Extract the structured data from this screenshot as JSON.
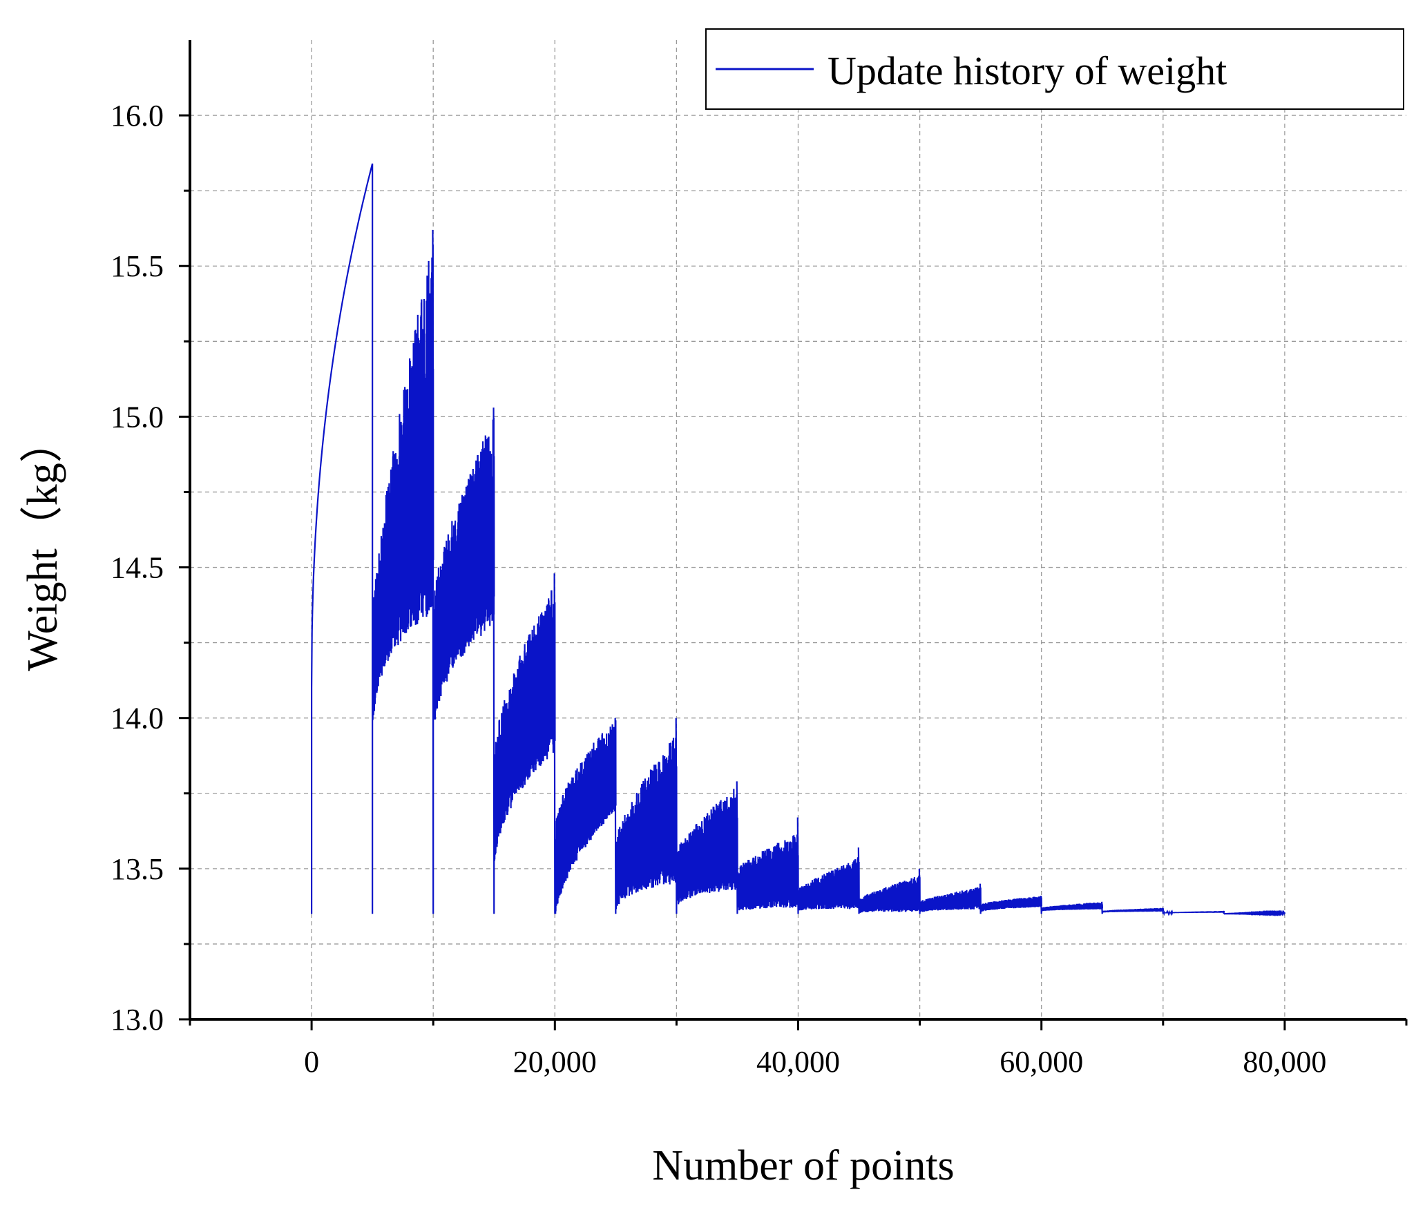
{
  "chart_data": {
    "type": "line",
    "title": "",
    "xlabel": "Number of points",
    "ylabel": "Weight（kg）",
    "xlim": [
      -10000,
      90000
    ],
    "ylim": [
      13.0,
      16.25
    ],
    "x_ticks": [
      0,
      20000,
      40000,
      60000,
      80000
    ],
    "x_tick_labels": [
      "0",
      "20,000",
      "40,000",
      "60,000",
      "80,000"
    ],
    "x_minor_ticks": [
      -10000,
      10000,
      30000,
      50000,
      70000,
      90000
    ],
    "y_ticks": [
      13.0,
      13.5,
      14.0,
      14.5,
      15.0,
      15.5,
      16.0
    ],
    "y_tick_labels": [
      "13.0",
      "13.5",
      "14.0",
      "14.5",
      "15.0",
      "15.5",
      "16.0"
    ],
    "y_minor_ticks": [
      13.25,
      13.75,
      14.25,
      14.75,
      15.25,
      15.75
    ],
    "grid": true,
    "legend_position": "top-right",
    "series": [
      {
        "name": "Update history of weight",
        "color": "#0a14c8",
        "segments": [
          {
            "start": 0,
            "end": 5000,
            "reset_low": 13.35,
            "base_start": 14.1,
            "base_end": 15.84,
            "band_start": 0.0,
            "band_end": 0.0,
            "curve": "sqrt"
          },
          {
            "start": 5000,
            "end": 10000,
            "reset_low": 13.35,
            "base_start": 14.0,
            "base_end": 14.6,
            "band_start": 0.3,
            "band_end": 1.0,
            "peak": 15.62
          },
          {
            "start": 10000,
            "end": 15000,
            "reset_low": 13.35,
            "base_start": 14.0,
            "base_end": 14.45,
            "band_start": 0.35,
            "band_end": 0.55,
            "peak": 15.03
          },
          {
            "start": 15000,
            "end": 20000,
            "reset_low": 13.35,
            "base_start": 13.55,
            "base_end": 14.0,
            "band_start": 0.3,
            "band_end": 0.45,
            "peak": 14.48
          },
          {
            "start": 20000,
            "end": 25000,
            "reset_low": 13.35,
            "base_start": 13.35,
            "base_end": 13.75,
            "band_start": 0.25,
            "band_end": 0.25,
            "peak": 14.0
          },
          {
            "start": 25000,
            "end": 30000,
            "reset_low": 13.35,
            "base_start": 13.4,
            "base_end": 13.55,
            "band_start": 0.2,
            "band_end": 0.4,
            "peak": 14.0
          },
          {
            "start": 30000,
            "end": 35000,
            "reset_low": 13.35,
            "base_start": 13.4,
            "base_end": 13.5,
            "band_start": 0.15,
            "band_end": 0.28,
            "peak": 13.79
          },
          {
            "start": 35000,
            "end": 40000,
            "reset_low": 13.35,
            "base_start": 13.38,
            "base_end": 13.42,
            "band_start": 0.12,
            "band_end": 0.2,
            "peak": 13.67
          },
          {
            "start": 40000,
            "end": 45000,
            "reset_low": 13.35,
            "base_start": 13.37,
            "base_end": 13.4,
            "band_start": 0.06,
            "band_end": 0.14,
            "peak": 13.57
          },
          {
            "start": 45000,
            "end": 50000,
            "reset_low": 13.35,
            "base_start": 13.36,
            "base_end": 13.38,
            "band_start": 0.04,
            "band_end": 0.1,
            "peak": 13.5
          },
          {
            "start": 50000,
            "end": 55000,
            "reset_low": 13.35,
            "base_start": 13.36,
            "base_end": 13.38,
            "band_start": 0.03,
            "band_end": 0.06,
            "peak": 13.45
          },
          {
            "start": 55000,
            "end": 60000,
            "reset_low": 13.35,
            "base_start": 13.36,
            "base_end": 13.38,
            "band_start": 0.02,
            "band_end": 0.03,
            "peak": 13.41
          },
          {
            "start": 60000,
            "end": 65000,
            "reset_low": 13.35,
            "base_start": 13.36,
            "base_end": 13.37,
            "band_start": 0.01,
            "band_end": 0.02,
            "peak": 13.39
          },
          {
            "start": 65000,
            "end": 70000,
            "reset_low": 13.35,
            "base_start": 13.355,
            "base_end": 13.36,
            "band_start": 0.005,
            "band_end": 0.01,
            "peak": 13.37
          },
          {
            "start": 70000,
            "end": 75000,
            "reset_low": 13.35,
            "base_start": 13.352,
            "base_end": 13.355,
            "band_start": 0.002,
            "band_end": 0.005,
            "peak": 13.36
          },
          {
            "start": 75000,
            "end": 80000,
            "reset_low": 13.35,
            "base_start": 13.35,
            "base_end": 13.352,
            "band_start": 0.0,
            "band_end": 0.002,
            "peak": 13.355
          }
        ]
      }
    ]
  }
}
